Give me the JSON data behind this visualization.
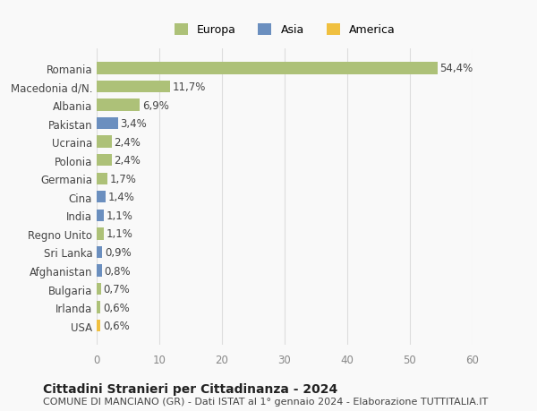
{
  "categories": [
    "Romania",
    "Macedonia d/N.",
    "Albania",
    "Pakistan",
    "Ucraina",
    "Polonia",
    "Germania",
    "Cina",
    "India",
    "Regno Unito",
    "Sri Lanka",
    "Afghanistan",
    "Bulgaria",
    "Irlanda",
    "USA"
  ],
  "values": [
    54.4,
    11.7,
    6.9,
    3.4,
    2.4,
    2.4,
    1.7,
    1.4,
    1.1,
    1.1,
    0.9,
    0.8,
    0.7,
    0.6,
    0.6
  ],
  "labels": [
    "54,4%",
    "11,7%",
    "6,9%",
    "3,4%",
    "2,4%",
    "2,4%",
    "1,7%",
    "1,4%",
    "1,1%",
    "1,1%",
    "0,9%",
    "0,8%",
    "0,7%",
    "0,6%",
    "0,6%"
  ],
  "colors": [
    "#adc178",
    "#adc178",
    "#adc178",
    "#6b8fbf",
    "#adc178",
    "#adc178",
    "#adc178",
    "#6b8fbf",
    "#6b8fbf",
    "#adc178",
    "#6b8fbf",
    "#6b8fbf",
    "#adc178",
    "#adc178",
    "#f0c040"
  ],
  "legend_labels": [
    "Europa",
    "Asia",
    "America"
  ],
  "legend_colors": [
    "#adc178",
    "#6b8fbf",
    "#f0c040"
  ],
  "xlim": [
    0,
    60
  ],
  "xticks": [
    0,
    10,
    20,
    30,
    40,
    50,
    60
  ],
  "title": "Cittadini Stranieri per Cittadinanza - 2024",
  "subtitle": "COMUNE DI MANCIANO (GR) - Dati ISTAT al 1° gennaio 2024 - Elaborazione TUTTITALIA.IT",
  "bg_color": "#f9f9f9",
  "grid_color": "#dddddd",
  "bar_height": 0.65,
  "label_fontsize": 8.5,
  "tick_fontsize": 8.5,
  "title_fontsize": 10,
  "subtitle_fontsize": 8
}
